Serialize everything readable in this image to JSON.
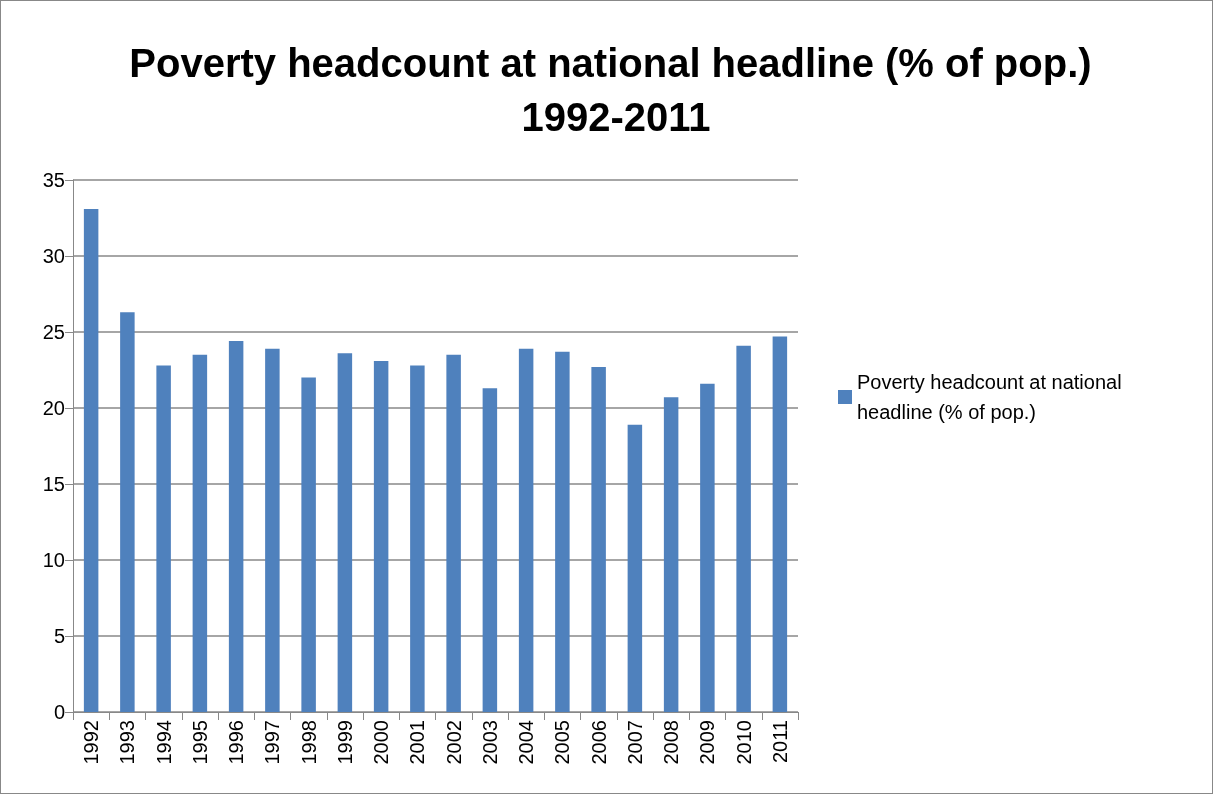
{
  "chart_data": {
    "type": "bar",
    "title": "Poverty headcount at national headline (% of pop.) 1992-2011",
    "categories": [
      "1992",
      "1993",
      "1994",
      "1995",
      "1996",
      "1997",
      "1998",
      "1999",
      "2000",
      "2001",
      "2002",
      "2003",
      "2004",
      "2005",
      "2006",
      "2007",
      "2008",
      "2009",
      "2010",
      "2011"
    ],
    "series": [
      {
        "name": "Poverty headcount at national headline (% of pop.)",
        "color": "#4f81bd",
        "values": [
          33.1,
          26.3,
          22.8,
          23.5,
          24.4,
          23.9,
          22.0,
          23.6,
          23.1,
          22.8,
          23.5,
          21.3,
          23.9,
          23.7,
          22.7,
          18.9,
          20.7,
          21.6,
          24.1,
          24.7
        ]
      }
    ],
    "ylim": [
      0,
      35
    ],
    "yticks": [
      0,
      5,
      10,
      15,
      20,
      25,
      30,
      35
    ],
    "grid": "y",
    "legend": "right"
  }
}
